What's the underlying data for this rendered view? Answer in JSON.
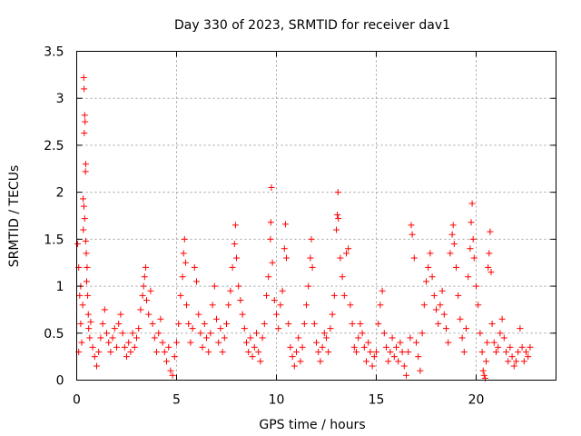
{
  "chart_data": {
    "type": "scatter",
    "title": "Day 330 of 2023, SRMTID for receiver dav1",
    "xlabel": "GPS time / hours",
    "ylabel": "SRMTID / TECUs",
    "xlim": [
      0,
      24
    ],
    "ylim": [
      0,
      3.5
    ],
    "x_ticks": [
      0,
      5,
      10,
      15,
      20
    ],
    "x_tick_labels": [
      "0",
      "5",
      "10",
      "15",
      "20"
    ],
    "y_ticks": [
      0,
      0.5,
      1,
      1.5,
      2,
      2.5,
      3,
      3.5
    ],
    "y_tick_labels": [
      "0",
      "0.5",
      "1",
      "1.5",
      "2",
      "2.5",
      "3",
      "3.5"
    ],
    "grid": true,
    "marker": "+",
    "color": "#ff0000",
    "series": [
      {
        "name": "dav1",
        "points": [
          [
            0.05,
            1.45
          ],
          [
            0.1,
            1.2
          ],
          [
            0.15,
            0.9
          ],
          [
            0.2,
            0.6
          ],
          [
            0.25,
            0.4
          ],
          [
            0.1,
            0.3
          ],
          [
            0.2,
            1.0
          ],
          [
            0.3,
            0.8
          ],
          [
            0.35,
            3.22
          ],
          [
            0.37,
            3.1
          ],
          [
            0.4,
            2.82
          ],
          [
            0.42,
            2.75
          ],
          [
            0.38,
            2.63
          ],
          [
            0.45,
            2.3
          ],
          [
            0.44,
            2.22
          ],
          [
            0.32,
            1.93
          ],
          [
            0.36,
            1.85
          ],
          [
            0.4,
            1.72
          ],
          [
            0.33,
            1.6
          ],
          [
            0.45,
            1.48
          ],
          [
            0.48,
            1.35
          ],
          [
            0.52,
            1.2
          ],
          [
            0.5,
            1.05
          ],
          [
            0.55,
            0.9
          ],
          [
            0.58,
            0.7
          ],
          [
            0.6,
            0.55
          ],
          [
            0.65,
            0.45
          ],
          [
            0.7,
            0.62
          ],
          [
            0.8,
            0.35
          ],
          [
            0.9,
            0.25
          ],
          [
            1.0,
            0.15
          ],
          [
            1.1,
            0.3
          ],
          [
            1.2,
            0.45
          ],
          [
            1.3,
            0.6
          ],
          [
            1.4,
            0.75
          ],
          [
            1.5,
            0.5
          ],
          [
            1.6,
            0.4
          ],
          [
            1.7,
            0.3
          ],
          [
            1.8,
            0.45
          ],
          [
            1.9,
            0.55
          ],
          [
            2.0,
            0.35
          ],
          [
            2.1,
            0.6
          ],
          [
            2.2,
            0.7
          ],
          [
            2.3,
            0.5
          ],
          [
            2.4,
            0.35
          ],
          [
            2.5,
            0.25
          ],
          [
            2.6,
            0.4
          ],
          [
            2.7,
            0.3
          ],
          [
            2.8,
            0.5
          ],
          [
            2.9,
            0.35
          ],
          [
            3.0,
            0.45
          ],
          [
            3.1,
            0.55
          ],
          [
            3.2,
            0.75
          ],
          [
            3.3,
            0.9
          ],
          [
            3.35,
            1.0
          ],
          [
            3.4,
            1.1
          ],
          [
            3.45,
            1.2
          ],
          [
            3.5,
            0.85
          ],
          [
            3.6,
            0.7
          ],
          [
            3.7,
            0.95
          ],
          [
            3.8,
            0.6
          ],
          [
            3.9,
            0.45
          ],
          [
            4.0,
            0.3
          ],
          [
            4.1,
            0.5
          ],
          [
            4.2,
            0.65
          ],
          [
            4.3,
            0.4
          ],
          [
            4.4,
            0.3
          ],
          [
            4.5,
            0.2
          ],
          [
            4.6,
            0.35
          ],
          [
            4.7,
            0.1
          ],
          [
            4.8,
            0.05
          ],
          [
            4.9,
            0.25
          ],
          [
            5.0,
            0.4
          ],
          [
            5.1,
            0.6
          ],
          [
            5.2,
            0.9
          ],
          [
            5.3,
            1.1
          ],
          [
            5.35,
            1.35
          ],
          [
            5.4,
            1.5
          ],
          [
            5.45,
            1.25
          ],
          [
            5.5,
            0.8
          ],
          [
            5.6,
            0.6
          ],
          [
            5.7,
            0.4
          ],
          [
            5.8,
            0.55
          ],
          [
            5.9,
            1.2
          ],
          [
            6.0,
            1.05
          ],
          [
            6.1,
            0.7
          ],
          [
            6.2,
            0.5
          ],
          [
            6.3,
            0.35
          ],
          [
            6.4,
            0.6
          ],
          [
            6.5,
            0.45
          ],
          [
            6.6,
            0.3
          ],
          [
            6.7,
            0.5
          ],
          [
            6.8,
            0.8
          ],
          [
            6.9,
            1.0
          ],
          [
            7.0,
            0.65
          ],
          [
            7.1,
            0.4
          ],
          [
            7.2,
            0.55
          ],
          [
            7.3,
            0.3
          ],
          [
            7.4,
            0.45
          ],
          [
            7.5,
            0.6
          ],
          [
            7.6,
            0.8
          ],
          [
            7.7,
            0.95
          ],
          [
            7.8,
            1.2
          ],
          [
            7.9,
            1.45
          ],
          [
            7.95,
            1.65
          ],
          [
            8.0,
            1.3
          ],
          [
            8.1,
            1.0
          ],
          [
            8.2,
            0.85
          ],
          [
            8.3,
            0.7
          ],
          [
            8.4,
            0.55
          ],
          [
            8.5,
            0.4
          ],
          [
            8.6,
            0.3
          ],
          [
            8.7,
            0.45
          ],
          [
            8.8,
            0.25
          ],
          [
            8.9,
            0.35
          ],
          [
            9.0,
            0.5
          ],
          [
            9.1,
            0.3
          ],
          [
            9.2,
            0.2
          ],
          [
            9.3,
            0.45
          ],
          [
            9.4,
            0.6
          ],
          [
            9.5,
            0.9
          ],
          [
            9.6,
            1.1
          ],
          [
            9.7,
            1.5
          ],
          [
            9.72,
            1.68
          ],
          [
            9.75,
            2.05
          ],
          [
            9.8,
            1.25
          ],
          [
            9.9,
            0.85
          ],
          [
            10.0,
            0.7
          ],
          [
            10.1,
            0.55
          ],
          [
            10.2,
            0.8
          ],
          [
            10.3,
            0.95
          ],
          [
            10.4,
            1.4
          ],
          [
            10.45,
            1.66
          ],
          [
            10.5,
            1.3
          ],
          [
            10.6,
            0.6
          ],
          [
            10.7,
            0.35
          ],
          [
            10.8,
            0.25
          ],
          [
            10.9,
            0.15
          ],
          [
            11.0,
            0.3
          ],
          [
            11.1,
            0.45
          ],
          [
            11.2,
            0.2
          ],
          [
            11.3,
            0.35
          ],
          [
            11.4,
            0.6
          ],
          [
            11.5,
            0.8
          ],
          [
            11.6,
            1.0
          ],
          [
            11.7,
            1.3
          ],
          [
            11.75,
            1.5
          ],
          [
            11.8,
            1.2
          ],
          [
            11.9,
            0.6
          ],
          [
            12.0,
            0.4
          ],
          [
            12.1,
            0.3
          ],
          [
            12.2,
            0.2
          ],
          [
            12.3,
            0.35
          ],
          [
            12.4,
            0.5
          ],
          [
            12.5,
            0.45
          ],
          [
            12.6,
            0.3
          ],
          [
            12.7,
            0.55
          ],
          [
            12.8,
            0.7
          ],
          [
            12.9,
            0.9
          ],
          [
            13.0,
            1.6
          ],
          [
            13.05,
            1.76
          ],
          [
            13.08,
            2.0
          ],
          [
            13.1,
            1.72
          ],
          [
            13.2,
            1.3
          ],
          [
            13.3,
            1.1
          ],
          [
            13.4,
            0.9
          ],
          [
            13.5,
            1.35
          ],
          [
            13.6,
            1.4
          ],
          [
            13.7,
            0.8
          ],
          [
            13.8,
            0.6
          ],
          [
            13.9,
            0.35
          ],
          [
            14.0,
            0.3
          ],
          [
            14.1,
            0.45
          ],
          [
            14.2,
            0.6
          ],
          [
            14.3,
            0.5
          ],
          [
            14.4,
            0.35
          ],
          [
            14.5,
            0.2
          ],
          [
            14.6,
            0.4
          ],
          [
            14.7,
            0.3
          ],
          [
            14.8,
            0.15
          ],
          [
            14.9,
            0.25
          ],
          [
            15.0,
            0.3
          ],
          [
            15.1,
            0.6
          ],
          [
            15.2,
            0.8
          ],
          [
            15.3,
            0.95
          ],
          [
            15.4,
            0.5
          ],
          [
            15.5,
            0.35
          ],
          [
            15.6,
            0.2
          ],
          [
            15.7,
            0.3
          ],
          [
            15.8,
            0.45
          ],
          [
            15.9,
            0.25
          ],
          [
            16.0,
            0.35
          ],
          [
            16.1,
            0.2
          ],
          [
            16.2,
            0.4
          ],
          [
            16.3,
            0.3
          ],
          [
            16.4,
            0.15
          ],
          [
            16.5,
            0.05
          ],
          [
            16.6,
            0.3
          ],
          [
            16.7,
            0.45
          ],
          [
            16.75,
            1.65
          ],
          [
            16.8,
            1.55
          ],
          [
            16.9,
            1.3
          ],
          [
            17.0,
            0.4
          ],
          [
            17.1,
            0.25
          ],
          [
            17.2,
            0.1
          ],
          [
            17.3,
            0.5
          ],
          [
            17.4,
            0.8
          ],
          [
            17.5,
            1.05
          ],
          [
            17.6,
            1.2
          ],
          [
            17.7,
            1.35
          ],
          [
            17.8,
            1.1
          ],
          [
            17.9,
            0.9
          ],
          [
            18.0,
            0.75
          ],
          [
            18.1,
            0.6
          ],
          [
            18.2,
            0.8
          ],
          [
            18.3,
            0.95
          ],
          [
            18.4,
            0.7
          ],
          [
            18.5,
            0.55
          ],
          [
            18.6,
            0.4
          ],
          [
            18.7,
            1.35
          ],
          [
            18.8,
            1.55
          ],
          [
            18.85,
            1.65
          ],
          [
            18.9,
            1.45
          ],
          [
            19.0,
            1.2
          ],
          [
            19.1,
            0.9
          ],
          [
            19.2,
            0.65
          ],
          [
            19.3,
            0.45
          ],
          [
            19.4,
            0.3
          ],
          [
            19.5,
            0.55
          ],
          [
            19.6,
            1.1
          ],
          [
            19.7,
            1.4
          ],
          [
            19.75,
            1.68
          ],
          [
            19.8,
            1.88
          ],
          [
            19.85,
            1.5
          ],
          [
            19.9,
            1.3
          ],
          [
            20.0,
            1.0
          ],
          [
            20.1,
            0.8
          ],
          [
            20.2,
            0.5
          ],
          [
            20.3,
            0.3
          ],
          [
            20.35,
            0.1
          ],
          [
            20.4,
            0.05
          ],
          [
            20.45,
            0.02
          ],
          [
            20.5,
            0.2
          ],
          [
            20.55,
            0.4
          ],
          [
            20.6,
            1.2
          ],
          [
            20.65,
            1.35
          ],
          [
            20.7,
            1.58
          ],
          [
            20.75,
            1.15
          ],
          [
            20.8,
            0.6
          ],
          [
            20.9,
            0.4
          ],
          [
            21.0,
            0.3
          ],
          [
            21.1,
            0.35
          ],
          [
            21.2,
            0.5
          ],
          [
            21.3,
            0.65
          ],
          [
            21.4,
            0.45
          ],
          [
            21.5,
            0.3
          ],
          [
            21.6,
            0.2
          ],
          [
            21.7,
            0.35
          ],
          [
            21.8,
            0.25
          ],
          [
            21.9,
            0.15
          ],
          [
            22.0,
            0.2
          ],
          [
            22.1,
            0.3
          ],
          [
            22.2,
            0.55
          ],
          [
            22.3,
            0.35
          ],
          [
            22.4,
            0.2
          ],
          [
            22.5,
            0.3
          ],
          [
            22.6,
            0.25
          ],
          [
            22.7,
            0.35
          ]
        ]
      }
    ]
  }
}
